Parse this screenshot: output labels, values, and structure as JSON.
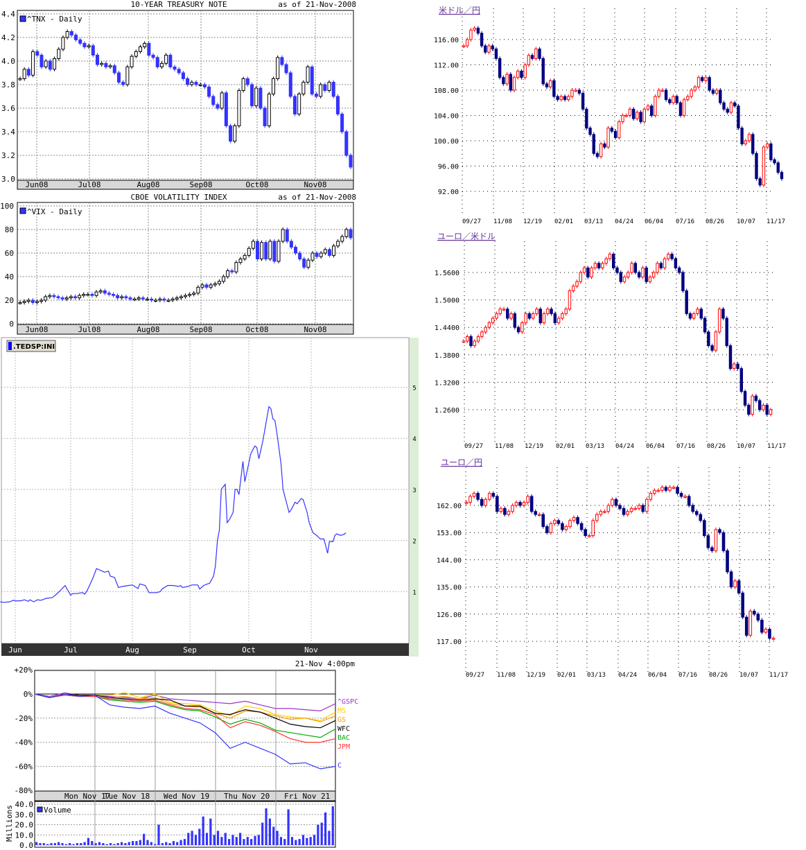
{
  "chart_data": [
    {
      "type": "candlestick",
      "title": "10-YEAR TREASURY NOTE",
      "as_of": "as of 21-Nov-2008",
      "legend": "^TNX - Daily",
      "ylim": [
        3.0,
        4.4
      ],
      "yticks": [
        "3.0",
        "3.2",
        "3.4",
        "3.6",
        "3.8",
        "4.0",
        "4.2",
        "4.4"
      ],
      "xticks": [
        "Jun08",
        "Jul08",
        "Aug08",
        "Sep08",
        "Oct08",
        "Nov08"
      ],
      "grid": true,
      "colors": {
        "up": "#ffffff",
        "down": "#3333ff"
      },
      "closes": [
        3.85,
        3.93,
        3.88,
        4.08,
        4.05,
        3.95,
        4.0,
        3.93,
        4.02,
        4.1,
        4.2,
        4.25,
        4.22,
        4.18,
        4.15,
        4.12,
        4.13,
        4.05,
        3.97,
        3.98,
        3.95,
        3.96,
        3.9,
        3.82,
        3.8,
        3.95,
        4.04,
        4.08,
        4.12,
        4.15,
        4.05,
        4.03,
        3.95,
        3.98,
        4.05,
        3.95,
        3.93,
        3.9,
        3.85,
        3.8,
        3.82,
        3.8,
        3.8,
        3.78,
        3.7,
        3.63,
        3.6,
        3.73,
        3.45,
        3.32,
        3.45,
        3.75,
        3.85,
        3.8,
        3.62,
        3.77,
        3.6,
        3.45,
        3.72,
        3.85,
        4.03,
        3.97,
        3.9,
        3.7,
        3.55,
        3.72,
        3.82,
        3.95,
        3.72,
        3.7,
        3.8,
        3.75,
        3.82,
        3.7,
        3.55,
        3.4,
        3.2,
        3.1
      ]
    },
    {
      "type": "candlestick",
      "title": "CBOE VOLATILITY INDEX",
      "as_of": "as of 21-Nov-2008",
      "legend": "^VIX - Daily",
      "ylim": [
        0,
        100
      ],
      "yticks": [
        "0",
        "20",
        "40",
        "60",
        "80",
        "100"
      ],
      "xticks": [
        "Jun08",
        "Jul08",
        "Aug08",
        "Sep08",
        "Oct08",
        "Nov08"
      ],
      "grid": true,
      "colors": {
        "up": "#ffffff",
        "down": "#3333ff"
      },
      "closes": [
        18,
        19,
        20,
        18,
        19,
        20,
        23,
        24,
        23,
        22,
        21,
        22,
        23,
        22,
        24,
        25,
        25,
        24,
        27,
        28,
        26,
        25,
        24,
        22,
        23,
        22,
        21,
        21,
        22,
        21,
        21,
        20,
        20,
        21,
        20,
        20,
        21,
        22,
        23,
        24,
        25,
        26,
        31,
        33,
        31,
        33,
        34,
        36,
        40,
        45,
        44,
        52,
        55,
        58,
        64,
        70,
        55,
        69,
        55,
        70,
        53,
        70,
        80,
        70,
        65,
        60,
        55,
        48,
        54,
        60,
        57,
        60,
        63,
        58,
        66,
        70,
        74,
        80,
        73
      ]
    },
    {
      "type": "line",
      "legend": ".TEDSP:INI",
      "ylim": [
        0,
        6
      ],
      "yticks": [
        "1",
        "2",
        "3",
        "4",
        "5"
      ],
      "xticks": [
        "Jun",
        "Jul",
        "Aug",
        "Sep",
        "Oct",
        "Nov"
      ],
      "grid": true,
      "colors": {
        "line": "#3333ff"
      },
      "points": [
        [
          "05-24",
          0.8
        ],
        [
          "05-26",
          0.79
        ],
        [
          "05-29",
          0.8
        ],
        [
          "05-31",
          0.83
        ],
        [
          "06-01",
          0.82
        ],
        [
          "06-04",
          0.82
        ],
        [
          "06-06",
          0.84
        ],
        [
          "06-08",
          0.81
        ],
        [
          "06-09",
          0.84
        ],
        [
          "06-11",
          0.8
        ],
        [
          "06-13",
          0.84
        ],
        [
          "06-15",
          0.83
        ],
        [
          "06-18",
          0.87
        ],
        [
          "06-21",
          0.88
        ],
        [
          "06-24",
          0.97
        ],
        [
          "06-28",
          1.12
        ],
        [
          "06-29",
          1.05
        ],
        [
          "07-01",
          0.93
        ],
        [
          "07-02",
          0.96
        ],
        [
          "07-04",
          0.96
        ],
        [
          "07-07",
          0.98
        ],
        [
          "07-08",
          0.95
        ],
        [
          "07-09",
          1.0
        ],
        [
          "07-12",
          1.25
        ],
        [
          "07-14",
          1.45
        ],
        [
          "07-18",
          1.38
        ],
        [
          "07-20",
          1.4
        ],
        [
          "07-21",
          1.3
        ],
        [
          "07-23",
          1.28
        ],
        [
          "07-25",
          1.08
        ],
        [
          "07-27",
          1.1
        ],
        [
          "07-30",
          1.12
        ],
        [
          "08-01",
          1.13
        ],
        [
          "08-04",
          1.06
        ],
        [
          "08-05",
          1.15
        ],
        [
          "08-08",
          1.12
        ],
        [
          "08-10",
          0.98
        ],
        [
          "08-14",
          0.98
        ],
        [
          "08-16",
          1.0
        ],
        [
          "08-17",
          1.05
        ],
        [
          "08-20",
          1.12
        ],
        [
          "08-23",
          1.12
        ],
        [
          "08-26",
          1.1
        ],
        [
          "08-27",
          1.12
        ],
        [
          "08-28",
          1.08
        ],
        [
          "08-31",
          1.1
        ],
        [
          "09-02",
          1.13
        ],
        [
          "09-05",
          1.13
        ],
        [
          "09-06",
          1.05
        ],
        [
          "09-08",
          1.12
        ],
        [
          "09-10",
          1.15
        ],
        [
          "09-11",
          1.16
        ],
        [
          "09-13",
          1.3
        ],
        [
          "09-14",
          1.5
        ],
        [
          "09-15",
          2.0
        ],
        [
          "09-16",
          2.2
        ],
        [
          "09-17",
          3.0
        ],
        [
          "09-19",
          3.1
        ],
        [
          "09-20",
          2.35
        ],
        [
          "09-21",
          2.4
        ],
        [
          "09-23",
          2.55
        ],
        [
          "09-24",
          3.0
        ],
        [
          "09-25",
          3.0
        ],
        [
          "09-26",
          2.9
        ],
        [
          "09-28",
          3.55
        ],
        [
          "09-29",
          3.15
        ],
        [
          "10-02",
          3.7
        ],
        [
          "10-04",
          3.85
        ],
        [
          "10-05",
          3.82
        ],
        [
          "10-06",
          3.6
        ],
        [
          "10-08",
          3.95
        ],
        [
          "10-11",
          4.62
        ],
        [
          "10-12",
          4.58
        ],
        [
          "10-13",
          4.38
        ],
        [
          "10-14",
          4.35
        ],
        [
          "10-15",
          4.1
        ],
        [
          "10-17",
          3.5
        ],
        [
          "10-18",
          3.0
        ],
        [
          "10-21",
          2.55
        ],
        [
          "10-22",
          2.6
        ],
        [
          "10-24",
          2.75
        ],
        [
          "10-25",
          2.72
        ],
        [
          "10-27",
          2.82
        ],
        [
          "10-28",
          2.8
        ],
        [
          "10-30",
          2.55
        ],
        [
          "10-31",
          2.35
        ],
        [
          "11-02",
          2.15
        ],
        [
          "11-04",
          2.1
        ],
        [
          "11-06",
          2.03
        ],
        [
          "11-08",
          2.03
        ],
        [
          "11-10",
          1.75
        ],
        [
          "11-11",
          1.98
        ],
        [
          "11-13",
          1.98
        ],
        [
          "11-14",
          2.1
        ],
        [
          "11-15",
          2.13
        ],
        [
          "11-17",
          2.1
        ],
        [
          "11-19",
          2.12
        ],
        [
          "11-20",
          2.15
        ]
      ]
    },
    {
      "type": "line",
      "title": "21-Nov 4:00pm",
      "ylim": [
        -80,
        20
      ],
      "yticks": [
        "+20%",
        "0%",
        "-20%",
        "-40%",
        "-60%",
        "-80%"
      ],
      "xticks": [
        "Mon Nov 17",
        "Tue Nov 18",
        "Wed Nov 19",
        "Thu Nov 20",
        "Fri Nov 21"
      ],
      "grid": true,
      "x_step_days": 0.25,
      "series": [
        {
          "name": "^GSPC",
          "color": "#9933cc",
          "values": [
            0,
            -2,
            1,
            -1,
            -1,
            -2,
            -3,
            -4,
            -1,
            -4,
            -5,
            -6,
            -7,
            -8,
            -6,
            -9,
            -12,
            -12,
            -13,
            -14,
            -8
          ]
        },
        {
          "name": "MS",
          "color": "#ffcc00",
          "values": [
            0,
            -3,
            0,
            -1,
            -1,
            -1,
            1,
            -3,
            0,
            -7,
            -8,
            -9,
            -14,
            -18,
            -10,
            -12,
            -17,
            -19,
            -20,
            -22,
            -15
          ]
        },
        {
          "name": "GS",
          "color": "#ff9900",
          "values": [
            0,
            -3,
            0,
            -2,
            -1,
            -3,
            -2,
            -4,
            -3,
            -8,
            -10,
            -11,
            -16,
            -20,
            -14,
            -15,
            -18,
            -21,
            -20,
            -23,
            -18
          ]
        },
        {
          "name": "WFC",
          "color": "#000000",
          "values": [
            0,
            -3,
            0,
            -1,
            -1,
            -3,
            -4,
            -5,
            -4,
            -5,
            -10,
            -10,
            -16,
            -17,
            -13,
            -15,
            -20,
            -25,
            -27,
            -28,
            -22
          ]
        },
        {
          "name": "BAC",
          "color": "#00aa00",
          "values": [
            0,
            -3,
            -1,
            -2,
            -2,
            -5,
            -6,
            -7,
            -6,
            -10,
            -13,
            -14,
            -19,
            -25,
            -21,
            -24,
            -30,
            -32,
            -34,
            -36,
            -29
          ]
        },
        {
          "name": "JPM",
          "color": "#ff3333",
          "values": [
            0,
            -3,
            -1,
            -2,
            -2,
            -4,
            -5,
            -6,
            -5,
            -9,
            -12,
            -13,
            -17,
            -28,
            -23,
            -26,
            -31,
            -37,
            -40,
            -40,
            -37
          ]
        },
        {
          "name": "C",
          "color": "#3333ff",
          "values": [
            0,
            -3,
            0,
            -2,
            -1,
            -9,
            -11,
            -12,
            -10,
            -16,
            -20,
            -24,
            -32,
            -45,
            -40,
            -45,
            -50,
            -58,
            -57,
            -62,
            -60
          ]
        }
      ],
      "volume": {
        "legend": "Volume",
        "ylabel": "Millions",
        "ylim": [
          0,
          40
        ],
        "yticks": [
          "0.0",
          "10.0",
          "20.0",
          "30.0",
          "40.0"
        ],
        "color": "#3333ff",
        "values": [
          3,
          2,
          2,
          1,
          2,
          2,
          3,
          2,
          1,
          2,
          1,
          2,
          2,
          3,
          7,
          4,
          2,
          3,
          2,
          1,
          2,
          1,
          2,
          3,
          2,
          3,
          4,
          4,
          5,
          11,
          5,
          3,
          1,
          20,
          2,
          3,
          2,
          4,
          3,
          5,
          6,
          12,
          14,
          10,
          16,
          28,
          12,
          26,
          10,
          14,
          8,
          12,
          6,
          10,
          8,
          12,
          6,
          8,
          6,
          9,
          10,
          22,
          36,
          26,
          18,
          14,
          8,
          6,
          35,
          8,
          5,
          6,
          10,
          7,
          8,
          10,
          20,
          22,
          32,
          14,
          38
        ]
      }
    },
    {
      "type": "candlestick",
      "title": "米ドル／円",
      "yticks": [
        "92.00",
        "96.00",
        "100.00",
        "104.00",
        "108.00",
        "112.00",
        "116.00"
      ],
      "xticks": [
        "09/27",
        "11/08",
        "12/19",
        "02/01",
        "03/13",
        "04/24",
        "06/04",
        "07/16",
        "08/26",
        "10/07",
        "11/17"
      ],
      "grid": true,
      "colors": {
        "up": "#ff0000",
        "down": "#000080"
      },
      "closes": [
        115,
        116,
        117.5,
        117.8,
        117,
        115,
        114,
        115,
        114.5,
        113,
        110,
        109,
        110.5,
        108,
        110,
        111,
        110,
        112,
        113.5,
        113,
        114.5,
        113,
        109,
        108.5,
        109.5,
        107,
        106.5,
        107,
        106.5,
        107,
        108,
        108,
        107.5,
        105,
        102,
        101,
        98,
        97.5,
        99.5,
        99,
        102,
        101.5,
        100.5,
        103,
        104,
        104,
        105,
        103.5,
        104.5,
        103,
        105,
        105.5,
        104,
        107,
        108,
        108,
        106.5,
        106,
        107,
        106,
        104,
        106.5,
        107,
        108,
        108.5,
        110,
        109.5,
        110,
        108,
        107.5,
        108,
        106,
        105,
        104.5,
        106,
        105.5,
        102,
        99.5,
        100,
        101,
        98,
        94,
        93,
        99,
        99.5,
        97,
        96.5,
        95,
        94
      ]
    },
    {
      "type": "candlestick",
      "title": "ユーロ／米ドル",
      "yticks": [
        "1.2600",
        "1.3200",
        "1.3800",
        "1.4400",
        "1.5000",
        "1.5600"
      ],
      "xticks": [
        "09/27",
        "11/08",
        "12/19",
        "02/01",
        "03/13",
        "04/24",
        "06/04",
        "07/16",
        "08/26",
        "10/07",
        "11/17"
      ],
      "grid": true,
      "colors": {
        "up": "#ff0000",
        "down": "#000080"
      },
      "closes": [
        1.41,
        1.42,
        1.4,
        1.41,
        1.42,
        1.43,
        1.44,
        1.45,
        1.46,
        1.47,
        1.48,
        1.48,
        1.46,
        1.47,
        1.44,
        1.43,
        1.45,
        1.47,
        1.46,
        1.47,
        1.48,
        1.45,
        1.47,
        1.48,
        1.47,
        1.45,
        1.46,
        1.47,
        1.48,
        1.52,
        1.53,
        1.54,
        1.56,
        1.57,
        1.55,
        1.57,
        1.58,
        1.57,
        1.58,
        1.59,
        1.6,
        1.57,
        1.56,
        1.54,
        1.55,
        1.56,
        1.58,
        1.56,
        1.55,
        1.57,
        1.54,
        1.55,
        1.56,
        1.58,
        1.57,
        1.59,
        1.6,
        1.59,
        1.57,
        1.56,
        1.52,
        1.47,
        1.46,
        1.47,
        1.48,
        1.46,
        1.43,
        1.4,
        1.39,
        1.43,
        1.48,
        1.46,
        1.4,
        1.35,
        1.36,
        1.35,
        1.3,
        1.27,
        1.25,
        1.29,
        1.28,
        1.26,
        1.27,
        1.25,
        1.26
      ]
    },
    {
      "type": "candlestick",
      "title": "ユーロ／円",
      "yticks": [
        "117.00",
        "126.00",
        "135.00",
        "144.00",
        "153.00",
        "162.00"
      ],
      "xticks": [
        "09/27",
        "11/08",
        "12/19",
        "02/01",
        "03/13",
        "04/24",
        "06/04",
        "07/16",
        "08/26",
        "10/07",
        "11/17"
      ],
      "grid": true,
      "colors": {
        "up": "#ff0000",
        "down": "#000080"
      },
      "closes": [
        163,
        165,
        166,
        164,
        162,
        164,
        166,
        165,
        160,
        161,
        159,
        160,
        162,
        163,
        162,
        163,
        165,
        160,
        159,
        159,
        155,
        153,
        156,
        157,
        156,
        154,
        155,
        157,
        158,
        156,
        154,
        152,
        152,
        157,
        159,
        160,
        160,
        162,
        164,
        162,
        161,
        159,
        160,
        161,
        161,
        162,
        160,
        164,
        166,
        167,
        167,
        168,
        167,
        168,
        168,
        166,
        165,
        165,
        162,
        160,
        159,
        157,
        152,
        148,
        147,
        154,
        153,
        147,
        140,
        135,
        137,
        133,
        125,
        119,
        127,
        126,
        124,
        120,
        121,
        118,
        118
      ]
    }
  ]
}
